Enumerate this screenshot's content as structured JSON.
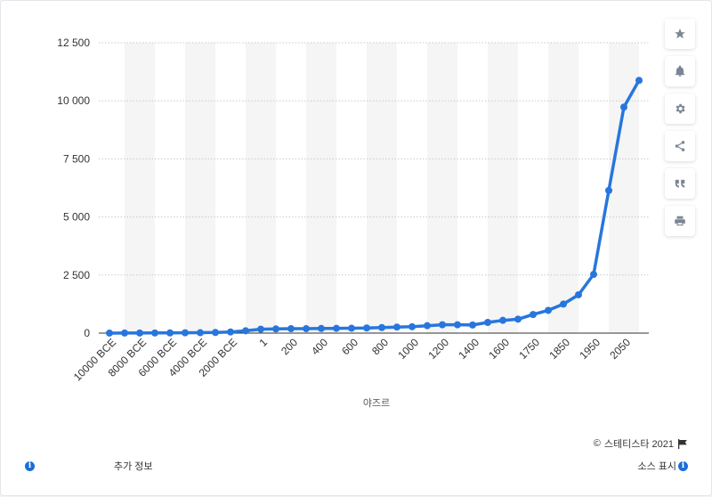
{
  "chart_data": {
    "type": "line",
    "title": "",
    "xlabel": "야즈르",
    "ylabel": "",
    "ylim": [
      0,
      12500
    ],
    "yticks": [
      0,
      2500,
      5000,
      7500,
      10000,
      12500
    ],
    "ytick_labels": [
      "0",
      "2 500",
      "5 000",
      "7 500",
      "10 000",
      "12 500"
    ],
    "x_labels": [
      "10000 BCE",
      "8000 BCE",
      "6000 BCE",
      "4000 BCE",
      "2000 BCE",
      "1",
      "200",
      "400",
      "600",
      "800",
      "1000",
      "1200",
      "1400",
      "1600",
      "1750",
      "1850",
      "1950",
      "2050"
    ],
    "x_label_positions": [
      0,
      2,
      4,
      6,
      8,
      10,
      12,
      14,
      16,
      18,
      20,
      22,
      24,
      26,
      28,
      30,
      32,
      34
    ],
    "grid": true,
    "color": "#2876dd",
    "series": [
      {
        "values": [
          1,
          3,
          5,
          7,
          10,
          14,
          18,
          27,
          50,
          100,
          170,
          180,
          190,
          190,
          200,
          205,
          210,
          220,
          240,
          260,
          275,
          320,
          360,
          360,
          350,
          460,
          550,
          600,
          800,
          980,
          1250,
          1650,
          2530,
          6140,
          9730,
          10880
        ]
      }
    ]
  },
  "sidebar": {
    "buttons": [
      {
        "icon": "star-icon",
        "name": "favorite-button"
      },
      {
        "icon": "bell-icon",
        "name": "notification-button"
      },
      {
        "icon": "gear-icon",
        "name": "settings-button"
      },
      {
        "icon": "share-icon",
        "name": "share-button"
      },
      {
        "icon": "quote-icon",
        "name": "cite-button"
      },
      {
        "icon": "print-icon",
        "name": "print-button"
      }
    ]
  },
  "footer": {
    "copyright_symbol": "©",
    "credit": "스테티스타 2021",
    "more_info": "추가 정보",
    "source": "소스 표시"
  }
}
